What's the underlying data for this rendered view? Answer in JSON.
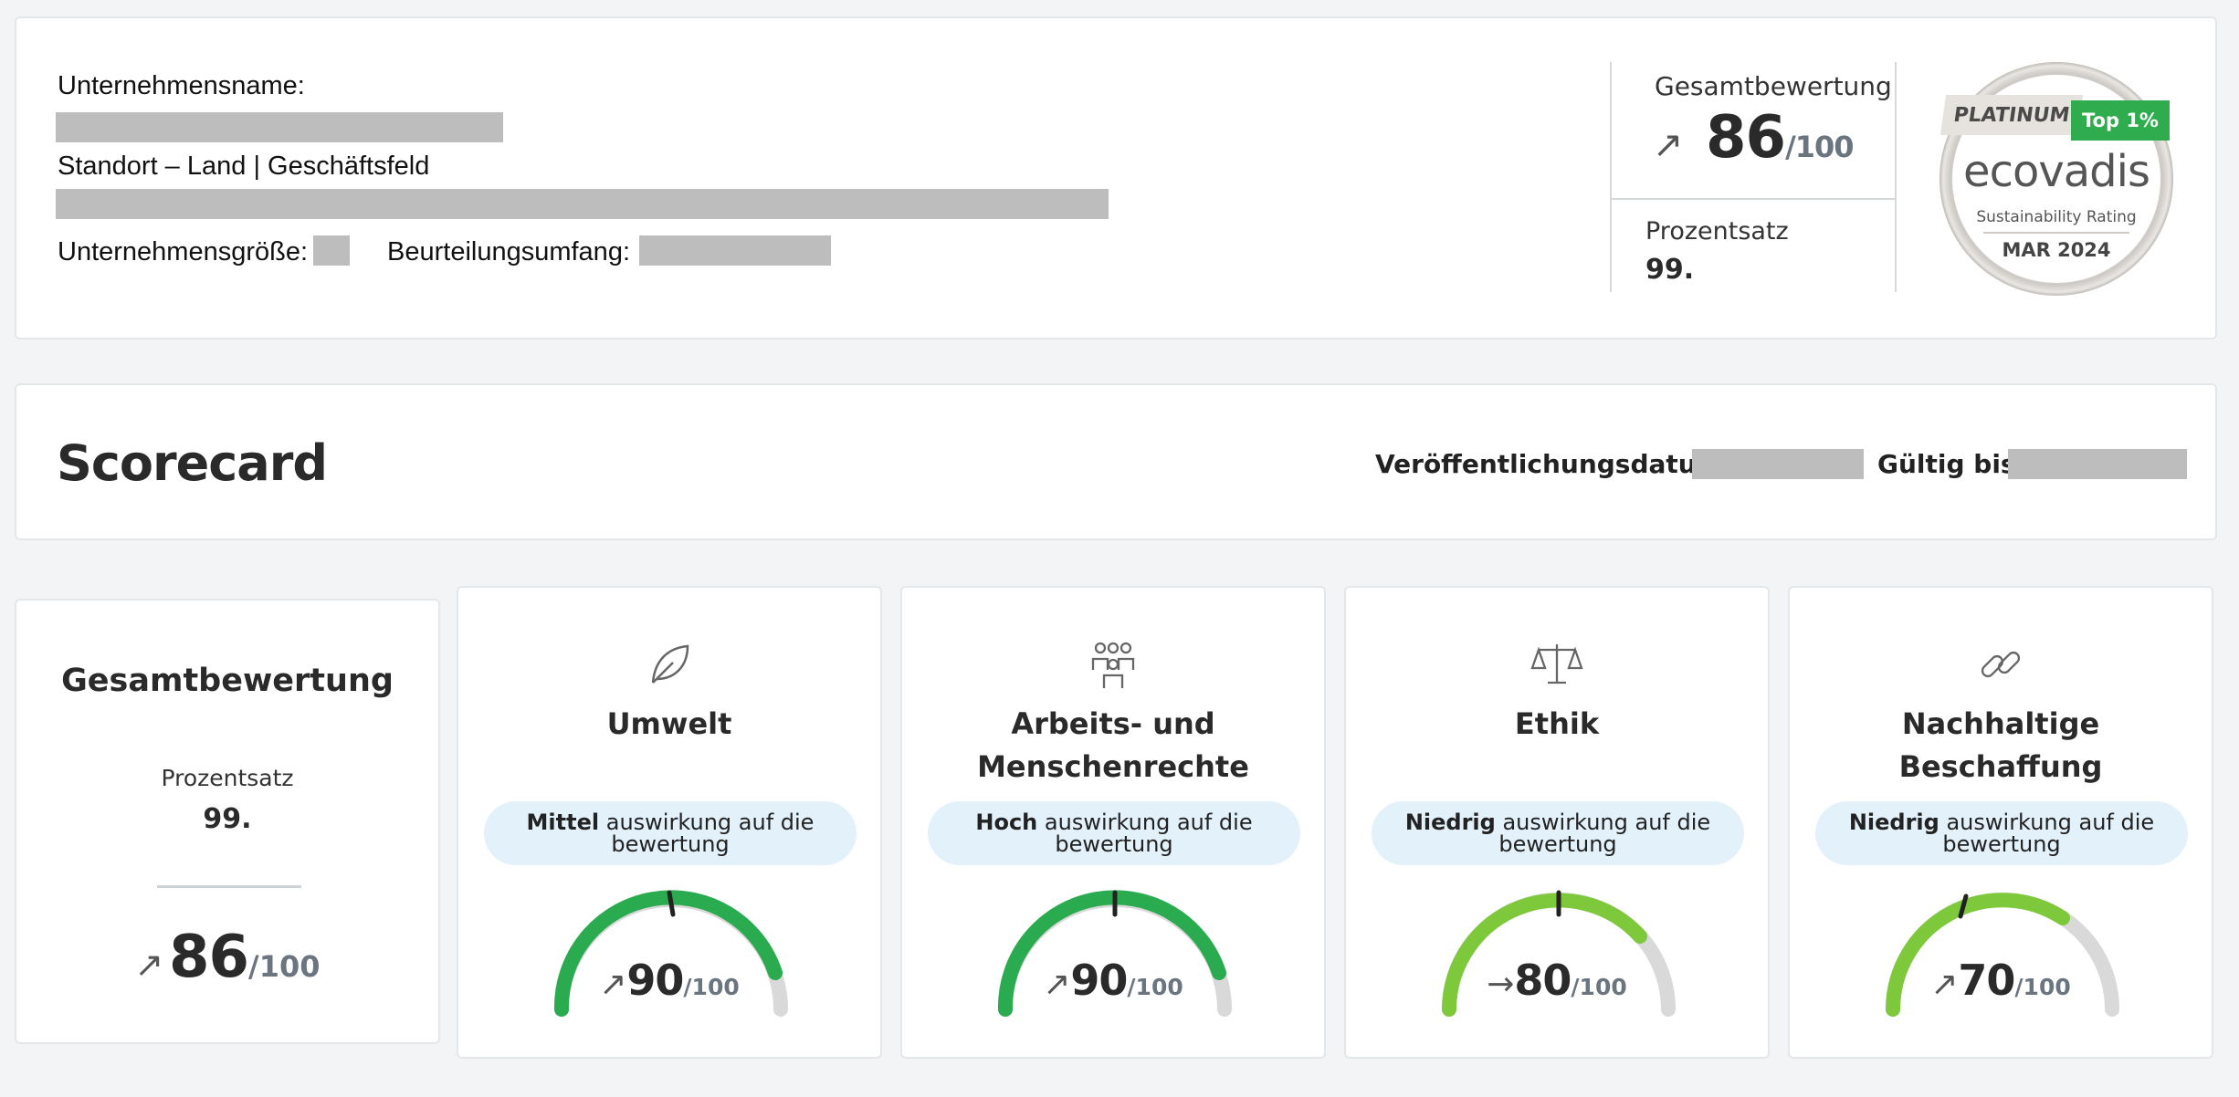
{
  "company": {
    "name_label": "Unternehmensname:",
    "location_label": "Standort – Land | Geschäftsfeld",
    "size_label": "Unternehmensgröße:",
    "scope_label": "Beurteilungsumfang:"
  },
  "summary": {
    "overall_label": "Gesamtbewertung",
    "overall_arrow": "↗",
    "overall_score": "86",
    "overall_denominator": "/100",
    "percentile_label": "Prozentsatz",
    "percentile_value": "99."
  },
  "badge": {
    "tier": "PLATINUM",
    "top": "Top 1%",
    "brand": "ecovadis",
    "subtitle": "Sustainability Rating",
    "date": "MAR 2024"
  },
  "scorecard": {
    "title": "Scorecard",
    "published_label": "Veröffentlichungsdatum:",
    "valid_label": "Gültig bis:"
  },
  "overall_card": {
    "title": "Gesamtbewertung",
    "percentile_label": "Prozentsatz",
    "percentile_value": "99.",
    "arrow": "↗",
    "score": "86",
    "denominator": "/100"
  },
  "themes": [
    {
      "title_line1": "Umwelt",
      "title_line2": "",
      "icon": "leaf-icon",
      "impact": "Mittel",
      "impact_suffix": "auswirkung auf die bewertung",
      "arrow": "↗",
      "score": "90",
      "denominator": "/100"
    },
    {
      "title_line1": "Arbeits- und",
      "title_line2": "Menschenrechte",
      "icon": "people-icon",
      "impact": "Hoch",
      "impact_suffix": "auswirkung auf die bewertung",
      "arrow": "↗",
      "score": "90",
      "denominator": "/100"
    },
    {
      "title_line1": "Ethik",
      "title_line2": "",
      "icon": "scales-icon",
      "impact": "Niedrig",
      "impact_suffix": "auswirkung auf die bewertung",
      "arrow": "→",
      "score": "80",
      "denominator": "/100"
    },
    {
      "title_line1": "Nachhaltige",
      "title_line2": "Beschaffung",
      "icon": "link-icon",
      "impact": "Niedrig",
      "impact_suffix": "auswirkung auf die bewertung",
      "arrow": "↗",
      "score": "70",
      "denominator": "/100"
    }
  ],
  "colors": {
    "dark_green": "#2bab4f",
    "light_green": "#7dc93b",
    "gauge_track": "#d9d9d9",
    "pill_bg": "#e3f1fb"
  }
}
